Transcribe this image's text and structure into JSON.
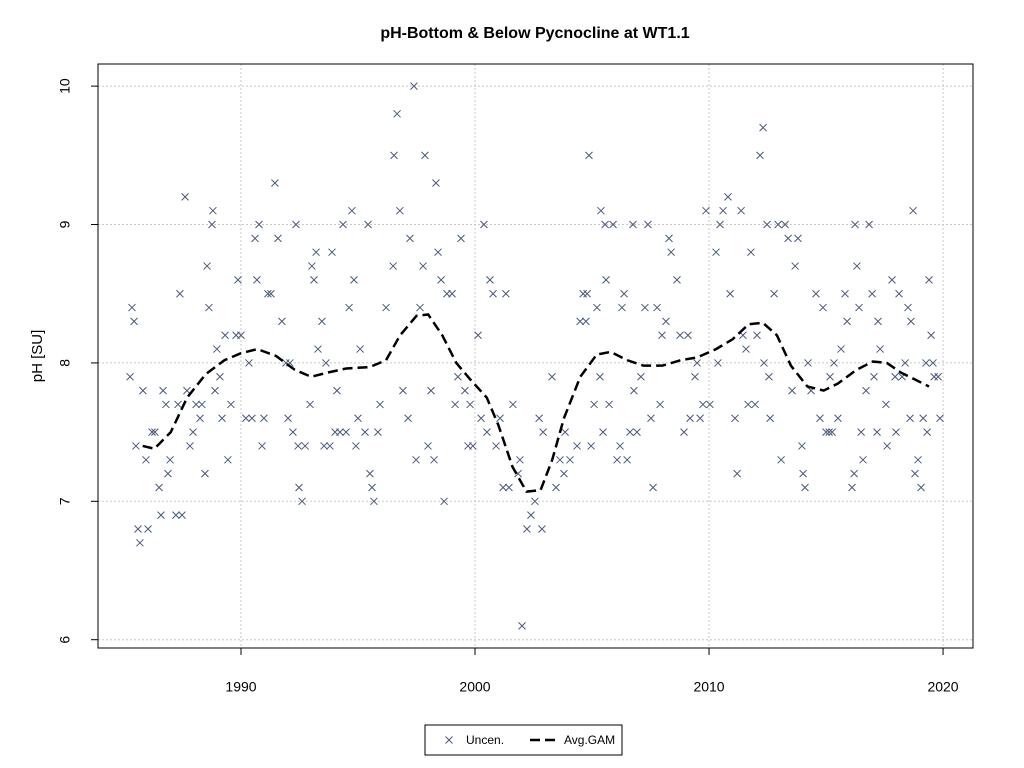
{
  "chart_data": {
    "type": "scatter",
    "title": "pH-Bottom & Below Pycnocline at WT1.1",
    "ylabel": "pH [SU]",
    "xlim": [
      1983.89,
      2021.28
    ],
    "ylim": [
      5.94,
      10.16
    ],
    "xticks": [
      1990,
      2000,
      2010,
      2020
    ],
    "yticks": [
      6,
      7,
      8,
      9,
      10
    ],
    "grid": true,
    "legend": "bottom",
    "series": [
      {
        "name": "Uncen.",
        "color": "#4a5a7a",
        "marker": "x",
        "x": [
          1985.26,
          1985.34,
          1985.43,
          1985.51,
          1985.6,
          1985.68,
          1985.81,
          1985.94,
          1986.03,
          1986.2,
          1986.32,
          1986.5,
          1986.58,
          1986.67,
          1986.79,
          1986.88,
          1986.97,
          1987.22,
          1987.39,
          1987.48,
          1987.31,
          1987.61,
          1987.69,
          1987.82,
          1987.95,
          1988.08,
          1988.25,
          1988.33,
          1988.46,
          1988.55,
          1988.63,
          1988.76,
          1988.8,
          1988.89,
          1988.97,
          1989.1,
          1989.19,
          1989.32,
          1989.44,
          1989.57,
          1989.79,
          1989.87,
          1990.0,
          1990.21,
          1990.34,
          1990.47,
          1990.6,
          1990.68,
          1990.77,
          1990.9,
          1990.98,
          1991.15,
          1991.28,
          1991.45,
          1991.58,
          1991.75,
          1991.92,
          1992.01,
          1992.09,
          1992.22,
          1992.35,
          1992.44,
          1992.48,
          1992.61,
          1992.74,
          1992.95,
          1993.03,
          1993.12,
          1993.21,
          1993.29,
          1993.46,
          1993.55,
          1993.63,
          1993.8,
          1993.89,
          1994.02,
          1994.1,
          1994.23,
          1994.36,
          1994.49,
          1994.62,
          1994.74,
          1994.83,
          1994.91,
          1995.0,
          1995.09,
          1995.3,
          1995.43,
          1995.51,
          1995.6,
          1995.68,
          1995.85,
          1995.94,
          1996.2,
          1996.5,
          1996.54,
          1996.67,
          1996.79,
          1996.92,
          1997.14,
          1997.22,
          1997.39,
          1997.48,
          1997.65,
          1997.78,
          1997.86,
          1997.99,
          1998.12,
          1998.25,
          1998.33,
          1998.42,
          1998.55,
          1998.68,
          1998.8,
          1999.02,
          1999.15,
          1999.27,
          1999.4,
          1999.57,
          1999.7,
          1999.79,
          1999.91,
          2000.13,
          2000.26,
          2000.38,
          2000.51,
          2000.64,
          2000.77,
          2000.9,
          2001.07,
          2001.2,
          2001.32,
          2001.45,
          2001.62,
          2001.84,
          2001.92,
          2002.01,
          2002.22,
          2002.39,
          2002.56,
          2002.74,
          2002.86,
          2002.91,
          2003.29,
          2003.46,
          2003.63,
          2003.85,
          2003.8,
          2004.06,
          2004.36,
          2004.49,
          2004.62,
          2004.74,
          2004.87,
          2004.96,
          2005.09,
          2004.79,
          2005.21,
          2005.38,
          2005.34,
          2005.47,
          2005.6,
          2005.56,
          2005.73,
          2005.9,
          2006.07,
          2006.2,
          2006.28,
          2006.37,
          2006.5,
          2006.62,
          2006.75,
          2006.92,
          2006.79,
          2007.09,
          2007.26,
          2007.39,
          2007.52,
          2007.61,
          2007.78,
          2007.91,
          2007.99,
          2008.16,
          2008.29,
          2008.38,
          2008.63,
          2008.76,
          2008.93,
          2009.1,
          2009.19,
          2009.4,
          2009.49,
          2009.62,
          2009.74,
          2009.87,
          2010.04,
          2010.3,
          2010.38,
          2010.47,
          2010.6,
          2010.81,
          2010.9,
          2011.11,
          2011.2,
          2011.37,
          2011.45,
          2011.58,
          2011.67,
          2011.79,
          2011.97,
          2012.05,
          2012.18,
          2012.31,
          2012.35,
          2012.48,
          2012.61,
          2012.78,
          2012.56,
          2012.95,
          2013.08,
          2013.25,
          2013.38,
          2013.55,
          2013.68,
          2013.8,
          2013.97,
          2014.02,
          2014.1,
          2014.23,
          2014.36,
          2014.57,
          2014.74,
          2014.87,
          2015.0,
          2015.13,
          2015.17,
          2015.34,
          2015.26,
          2015.51,
          2015.64,
          2015.81,
          2015.9,
          2016.11,
          2016.2,
          2016.24,
          2016.32,
          2016.41,
          2016.5,
          2016.58,
          2016.71,
          2016.84,
          2016.97,
          2017.05,
          2017.18,
          2017.22,
          2017.31,
          2017.61,
          2017.56,
          2017.82,
          2017.99,
          2017.95,
          2018.12,
          2018.25,
          2018.38,
          2018.5,
          2018.59,
          2018.63,
          2018.72,
          2018.8,
          2018.93,
          2019.06,
          2019.15,
          2019.27,
          2019.32,
          2019.4,
          2019.49,
          2019.62,
          2019.57,
          2019.79,
          2019.87
        ],
        "values": [
          7.9,
          8.4,
          8.3,
          7.4,
          6.8,
          6.7,
          7.8,
          7.3,
          6.8,
          7.5,
          7.5,
          7.1,
          6.9,
          7.8,
          7.7,
          7.2,
          7.3,
          6.9,
          8.5,
          6.9,
          7.7,
          9.2,
          7.8,
          7.4,
          7.5,
          7.7,
          7.6,
          7.7,
          7.2,
          8.7,
          8.4,
          9.0,
          9.1,
          7.8,
          8.1,
          7.9,
          7.6,
          8.2,
          7.3,
          7.7,
          8.2,
          8.6,
          8.2,
          7.6,
          8.0,
          7.6,
          8.9,
          8.6,
          9.0,
          7.4,
          7.6,
          8.5,
          8.5,
          9.3,
          8.9,
          8.3,
          8.0,
          7.6,
          8.0,
          7.5,
          9.0,
          7.4,
          7.1,
          7.0,
          7.4,
          7.7,
          8.7,
          8.6,
          8.8,
          8.1,
          8.3,
          7.4,
          8.0,
          7.4,
          8.8,
          7.5,
          7.8,
          7.5,
          9.0,
          7.5,
          8.4,
          9.1,
          8.6,
          7.4,
          7.6,
          8.1,
          7.5,
          9.0,
          7.2,
          7.1,
          7.0,
          7.5,
          7.7,
          8.4,
          8.7,
          9.5,
          9.8,
          9.1,
          7.8,
          7.6,
          8.9,
          10.0,
          7.3,
          8.4,
          8.7,
          9.5,
          7.4,
          7.8,
          7.3,
          9.3,
          8.8,
          8.6,
          7.0,
          8.5,
          8.5,
          7.7,
          7.9,
          8.9,
          7.8,
          7.4,
          7.7,
          7.4,
          8.2,
          7.6,
          9.0,
          7.5,
          8.6,
          8.5,
          7.4,
          7.6,
          7.1,
          8.5,
          7.1,
          7.7,
          7.2,
          7.3,
          6.1,
          6.8,
          6.9,
          7.0,
          7.6,
          6.8,
          7.5,
          7.9,
          7.1,
          7.3,
          7.5,
          7.2,
          7.3,
          7.4,
          8.3,
          8.5,
          8.3,
          9.5,
          7.4,
          7.7,
          8.5,
          8.4,
          9.1,
          7.9,
          7.5,
          8.6,
          9.0,
          7.7,
          9.0,
          7.3,
          7.4,
          8.4,
          8.5,
          7.3,
          7.5,
          9.0,
          7.5,
          7.8,
          7.9,
          8.4,
          9.0,
          7.6,
          7.1,
          8.4,
          7.7,
          8.2,
          8.3,
          8.9,
          8.8,
          8.6,
          8.2,
          7.5,
          8.2,
          7.6,
          7.9,
          8.0,
          7.6,
          7.7,
          9.1,
          7.7,
          8.8,
          8.0,
          9.0,
          9.1,
          9.2,
          8.5,
          7.6,
          7.2,
          9.1,
          8.2,
          8.1,
          7.7,
          8.8,
          7.7,
          8.2,
          9.5,
          9.7,
          8.0,
          9.0,
          7.6,
          8.5,
          7.9,
          9.0,
          7.3,
          9.0,
          8.9,
          7.8,
          8.7,
          8.9,
          7.4,
          7.2,
          7.1,
          8.0,
          7.8,
          8.5,
          7.6,
          8.4,
          7.5,
          7.5,
          7.9,
          8.0,
          7.5,
          7.6,
          8.1,
          8.5,
          8.3,
          7.1,
          7.2,
          9.0,
          8.7,
          8.4,
          7.5,
          7.3,
          7.8,
          9.0,
          8.5,
          7.9,
          7.5,
          8.3,
          8.1,
          7.4,
          7.7,
          8.6,
          7.5,
          7.9,
          8.5,
          7.9,
          8.0,
          8.4,
          7.6,
          8.3,
          9.1,
          7.2,
          7.3,
          7.1,
          7.6,
          8.0,
          7.5,
          8.6,
          8.2,
          7.9,
          8.0,
          7.9,
          7.6
        ]
      },
      {
        "name": "Avg.GAM",
        "color": "#000000",
        "line": "dashed",
        "x": [
          1985.8,
          1986.3,
          1987.0,
          1987.7,
          1988.5,
          1989.3,
          1990.0,
          1990.7,
          1991.5,
          1992.3,
          1993.0,
          1993.7,
          1994.5,
          1995.5,
          1996.2,
          1996.8,
          1997.5,
          1998.0,
          1998.6,
          1999.2,
          1999.8,
          2000.5,
          2001.0,
          2001.6,
          2002.2,
          2002.8,
          2003.3,
          2003.8,
          2004.5,
          2005.2,
          2005.8,
          2006.5,
          2007.2,
          2008.0,
          2008.8,
          2009.5,
          2010.3,
          2011.0,
          2011.7,
          2012.3,
          2012.9,
          2013.5,
          2014.2,
          2014.9,
          2015.5,
          2016.3,
          2017.0,
          2017.6,
          2018.2,
          2018.8,
          2019.4
        ],
        "values": [
          7.4,
          7.38,
          7.5,
          7.75,
          7.92,
          8.02,
          8.07,
          8.1,
          8.05,
          7.95,
          7.9,
          7.93,
          7.96,
          7.97,
          8.02,
          8.2,
          8.34,
          8.35,
          8.2,
          8.0,
          7.88,
          7.75,
          7.55,
          7.25,
          7.07,
          7.08,
          7.3,
          7.6,
          7.9,
          8.06,
          8.08,
          8.02,
          7.98,
          7.98,
          8.02,
          8.04,
          8.1,
          8.17,
          8.28,
          8.29,
          8.2,
          7.98,
          7.83,
          7.8,
          7.85,
          7.95,
          8.01,
          8.0,
          7.93,
          7.88,
          7.83
        ]
      }
    ]
  }
}
